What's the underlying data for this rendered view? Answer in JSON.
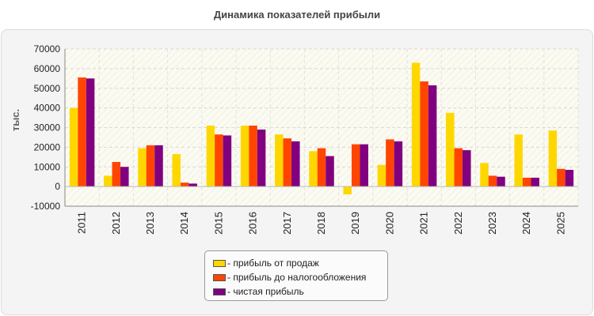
{
  "title": "Динамика показателей прибыли",
  "chart_data": {
    "type": "bar",
    "title": "Динамика показателей прибыли",
    "ylabel": "тыс.",
    "xlabel": "",
    "categories": [
      "2011",
      "2012",
      "2013",
      "2014",
      "2015",
      "2016",
      "2017",
      "2018",
      "2019",
      "2020",
      "2021",
      "2022",
      "2023",
      "2024",
      "2025"
    ],
    "series": [
      {
        "name": "- прибыль от продаж",
        "color": "#ffd700",
        "values": [
          40000,
          5500,
          19500,
          16500,
          31000,
          31000,
          26500,
          18000,
          -4000,
          11000,
          63000,
          37500,
          12000,
          26500,
          28500
        ]
      },
      {
        "name": "- прибыль до налогообложения",
        "color": "#ff4500",
        "values": [
          55500,
          12500,
          21000,
          2000,
          26500,
          31000,
          24500,
          19500,
          21500,
          24000,
          53500,
          19500,
          5500,
          4500,
          9000
        ]
      },
      {
        "name": "- чистая прибыль",
        "color": "#800080",
        "values": [
          55000,
          10000,
          21000,
          1500,
          26000,
          29000,
          23000,
          15500,
          21500,
          23000,
          51500,
          18500,
          5000,
          4500,
          8500
        ]
      }
    ],
    "ylim": [
      -10000,
      70000
    ],
    "yticks": [
      -10000,
      0,
      10000,
      20000,
      30000,
      40000,
      50000,
      60000,
      70000
    ],
    "grid": true,
    "legend": "bottom-center"
  }
}
